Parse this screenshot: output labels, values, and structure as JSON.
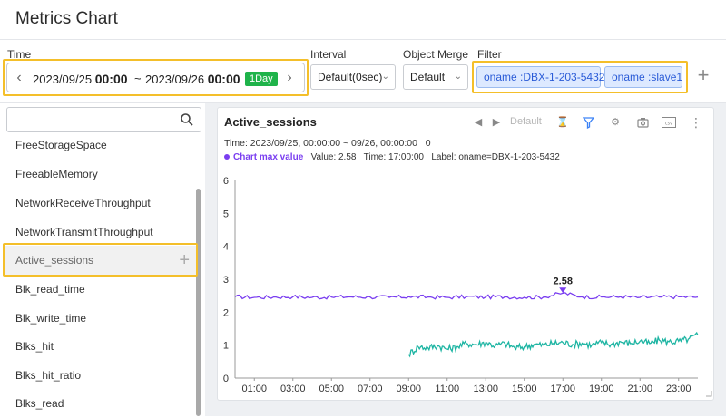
{
  "page": {
    "title": "Metrics Chart"
  },
  "toolbar": {
    "time_label": "Time",
    "interval_label": "Interval",
    "object_merge_label": "Object Merge",
    "filter_label": "Filter",
    "start_date": "2023/09/25",
    "start_time": "00:00",
    "separator": "~",
    "end_date": "2023/09/26",
    "end_time": "00:00",
    "range_badge": "1Day",
    "interval_value": "Default(0sec)",
    "object_merge_value": "Default",
    "filters": [
      "oname :DBX-1-203-5432",
      "oname :slave1"
    ],
    "add_filter": "+"
  },
  "metrics": {
    "search_placeholder": "",
    "items": [
      "FreeStorageSpace",
      "FreeableMemory",
      "NetworkReceiveThroughput",
      "NetworkTransmitThroughput",
      "Active_sessions",
      "Blk_read_time",
      "Blk_write_time",
      "Blks_hit",
      "Blks_hit_ratio",
      "Blks_read"
    ],
    "selected": "Active_sessions",
    "add_icon": "+"
  },
  "chart": {
    "title": "Active_sessions",
    "tools": {
      "default_label": "Default",
      "icons": [
        "prev-icon",
        "next-icon",
        "hourglass-icon",
        "filter-icon",
        "settings-icon",
        "camera-icon",
        "csv-icon",
        "more-icon"
      ]
    },
    "time_line": "Time: 2023/09/25, 00:00:00 ~ 09/26, 00:00:00",
    "time_count": "0",
    "max_label": "Chart max value",
    "max_value_text": "Value: 2.58",
    "max_time_text": "Time: 17:00:00",
    "max_label_text": "Label: oname=DBX-1-203-5432",
    "max_marker_label": "2.58"
  },
  "chart_data": {
    "type": "line",
    "x_tick_labels": [
      "01:00",
      "03:00",
      "05:00",
      "07:00",
      "09:00",
      "11:00",
      "13:00",
      "15:00",
      "17:00",
      "19:00",
      "21:00",
      "23:00"
    ],
    "y_ticks": [
      0,
      1,
      2,
      3,
      4,
      5,
      6
    ],
    "xlim": [
      0,
      24
    ],
    "ylim": [
      0,
      6
    ],
    "colors": {
      "series1": "#7a3ef0",
      "series2": "#1eb5a3"
    },
    "series": [
      {
        "color": "#7a3ef0",
        "points": [
          [
            0,
            2.47
          ],
          [
            1,
            2.45
          ],
          [
            2,
            2.46
          ],
          [
            3,
            2.47
          ],
          [
            4,
            2.45
          ],
          [
            5,
            2.46
          ],
          [
            6,
            2.47
          ],
          [
            7,
            2.46
          ],
          [
            8,
            2.45
          ],
          [
            9,
            2.47
          ],
          [
            10,
            2.46
          ],
          [
            11,
            2.45
          ],
          [
            12,
            2.47
          ],
          [
            13,
            2.46
          ],
          [
            14,
            2.47
          ],
          [
            15,
            2.45
          ],
          [
            16,
            2.46
          ],
          [
            17,
            2.58
          ],
          [
            18,
            2.47
          ],
          [
            19,
            2.46
          ],
          [
            20,
            2.47
          ],
          [
            21,
            2.45
          ],
          [
            22,
            2.46
          ],
          [
            23,
            2.47
          ],
          [
            24,
            2.46
          ]
        ]
      },
      {
        "color": "#1eb5a3",
        "points": [
          [
            9.0,
            0.72
          ],
          [
            9.5,
            0.95
          ],
          [
            10,
            0.92
          ],
          [
            10.5,
            0.98
          ],
          [
            11,
            0.88
          ],
          [
            11.5,
            0.95
          ],
          [
            12,
            1.05
          ],
          [
            12.5,
            1.02
          ],
          [
            13,
            1.08
          ],
          [
            13.5,
            0.98
          ],
          [
            14,
            1.05
          ],
          [
            14.5,
            0.92
          ],
          [
            15,
            0.95
          ],
          [
            15.5,
            1.02
          ],
          [
            16,
            1.0
          ],
          [
            16.5,
            1.05
          ],
          [
            17,
            1.08
          ],
          [
            17.5,
            1.02
          ],
          [
            18,
            1.06
          ],
          [
            18.5,
            1.0
          ],
          [
            19,
            1.08
          ],
          [
            19.5,
            1.02
          ],
          [
            20,
            1.1
          ],
          [
            20.5,
            1.05
          ],
          [
            21,
            1.12
          ],
          [
            21.5,
            1.05
          ],
          [
            22,
            1.15
          ],
          [
            22.5,
            1.1
          ],
          [
            23,
            1.12
          ],
          [
            23.5,
            1.18
          ],
          [
            24,
            1.3
          ]
        ]
      }
    ],
    "max_marker": {
      "x": 17,
      "y": 2.58
    }
  }
}
